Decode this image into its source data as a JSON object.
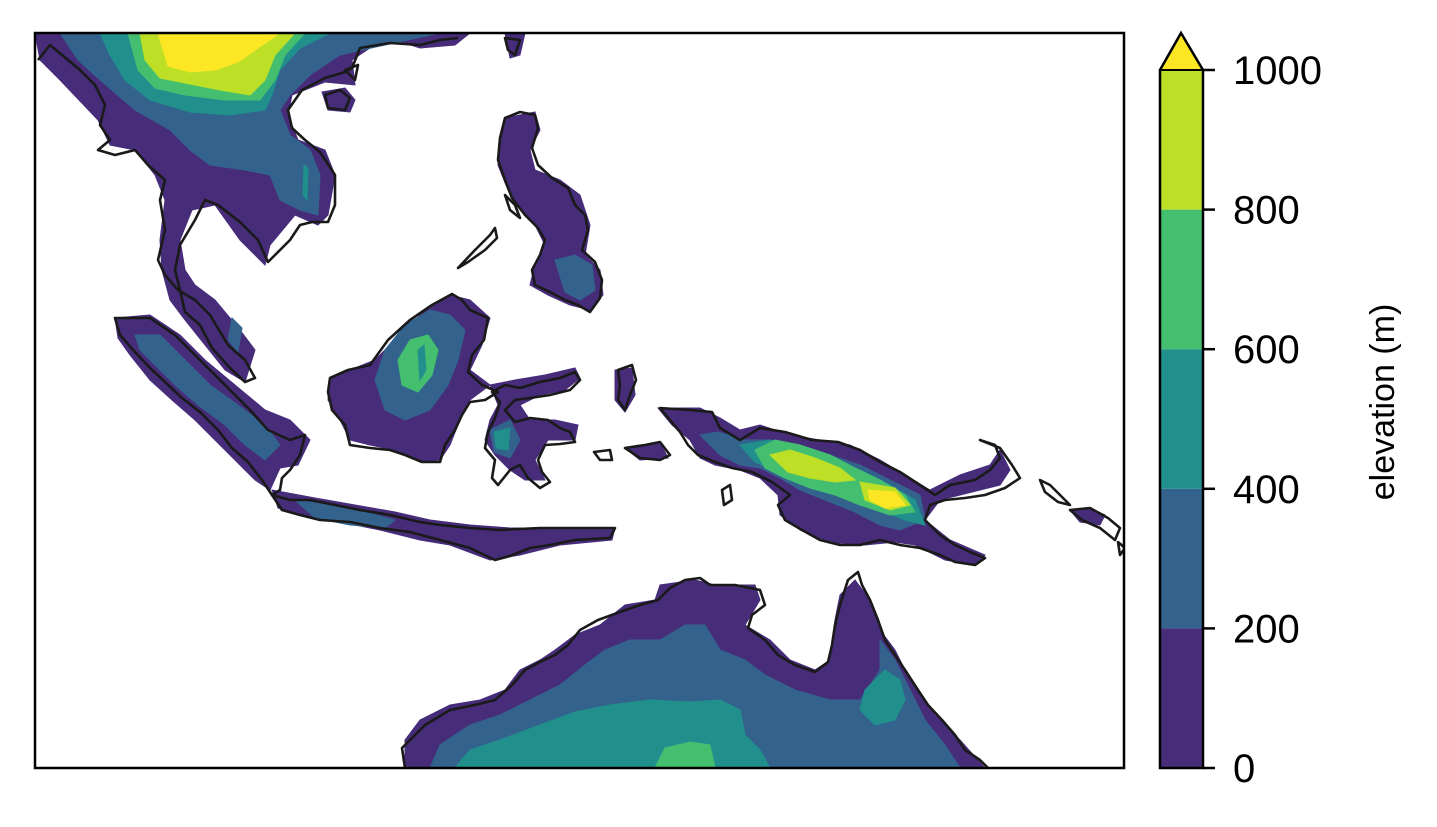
{
  "colorbar": {
    "label": "elevation (m)",
    "ticks": [
      "0",
      "200",
      "400",
      "600",
      "800",
      "1000"
    ],
    "levels": [
      0,
      200,
      400,
      600,
      800,
      1000
    ],
    "extend": "max",
    "colors": [
      "#472c7a",
      "#33638d",
      "#21908d",
      "#44bf70",
      "#bddf26",
      "#fde725"
    ]
  },
  "map": {
    "projection": "PlateCarree",
    "region": "Maritime Continent / Southeast Asia",
    "variable": "elevation",
    "units": "m",
    "axis_ticks_shown": false
  }
}
